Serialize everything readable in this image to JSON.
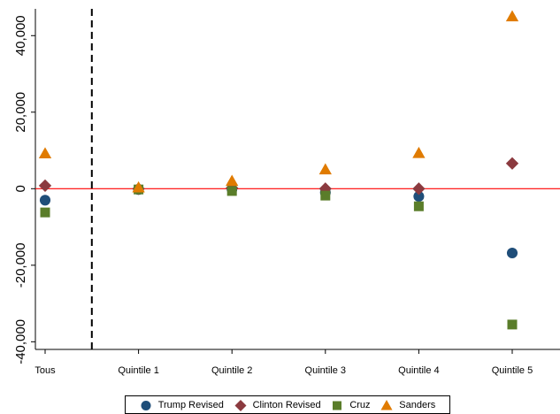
{
  "chart_data": {
    "type": "scatter",
    "categories": [
      "Tous",
      "Quintile 1",
      "Quintile 2",
      "Quintile 3",
      "Quintile 4",
      "Quintile 5"
    ],
    "series": [
      {
        "name": "Trump Revised",
        "values": [
          -3000,
          -200,
          -100,
          -1000,
          -2000,
          -16800
        ],
        "color": "#1f4e79",
        "marker": "circle"
      },
      {
        "name": "Clinton Revised",
        "values": [
          800,
          0,
          200,
          0,
          0,
          6600
        ],
        "color": "#8b3a3f",
        "marker": "diamond"
      },
      {
        "name": "Cruz",
        "values": [
          -6200,
          -200,
          -600,
          -1800,
          -4600,
          -35500
        ],
        "color": "#5a7d2a",
        "marker": "square"
      },
      {
        "name": "Sanders",
        "values": [
          9200,
          300,
          2000,
          5000,
          9300,
          45000
        ],
        "color": "#e07b00",
        "marker": "triangle"
      }
    ],
    "yticks": [
      -40000,
      -20000,
      0,
      20000,
      40000
    ],
    "ytick_labels": [
      "-40,000",
      "-20,000",
      "0",
      "20,000",
      "40,000"
    ],
    "ylim": [
      -42000,
      47000
    ],
    "reference_line": {
      "y": 0,
      "color": "#ff0000"
    },
    "divider_after_category": "Tous",
    "xlabel": "",
    "ylabel": "",
    "legend_position": "bottom",
    "grid": false
  }
}
